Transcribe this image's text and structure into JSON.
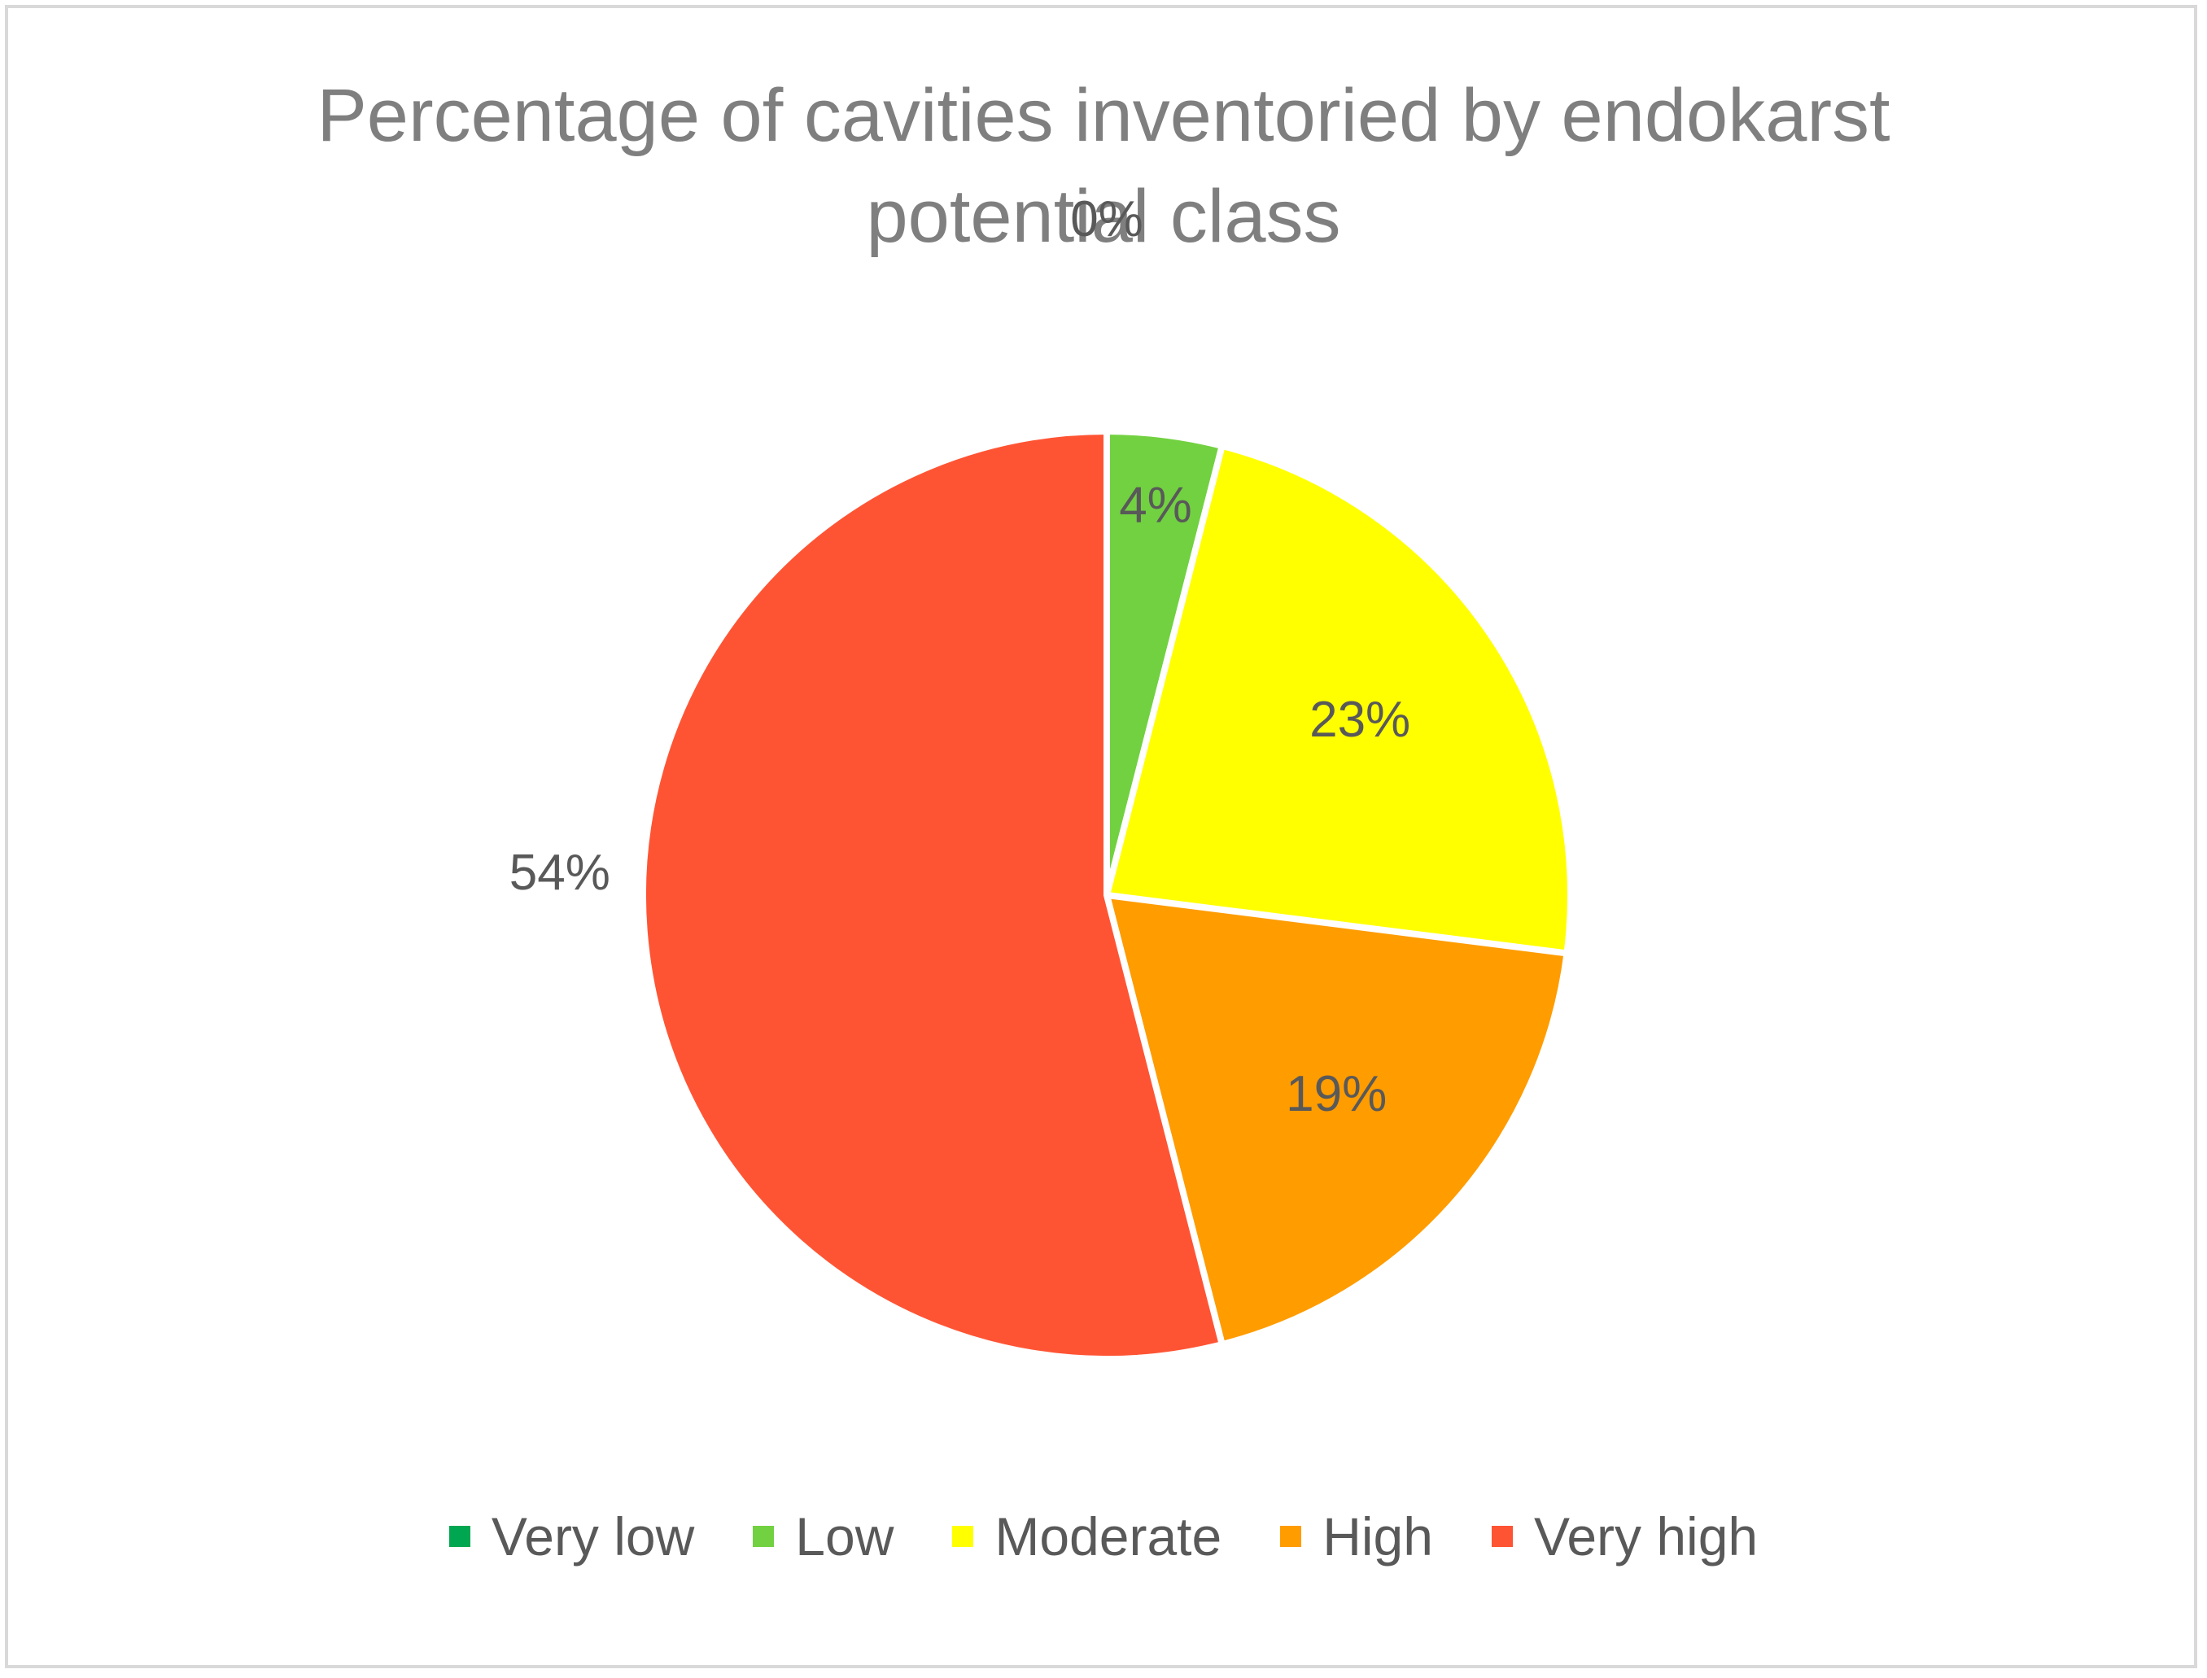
{
  "chart_data": {
    "type": "pie",
    "title": "Percentage of cavities inventoried by endokarst potential class",
    "title_lines": [
      "Percentage of cavities inventoried by endokarst",
      "potential class"
    ],
    "legend_position": "bottom",
    "slices": [
      {
        "name": "Very low",
        "value": 0,
        "label": "0%",
        "color": "#00a650"
      },
      {
        "name": "Low",
        "value": 4,
        "label": "4%",
        "color": "#72d141"
      },
      {
        "name": "Moderate",
        "value": 23,
        "label": "23%",
        "color": "#ffff00"
      },
      {
        "name": "High",
        "value": 19,
        "label": "19%",
        "color": "#ff9c00"
      },
      {
        "name": "Very high",
        "value": 54,
        "label": "54%",
        "color": "#ff5434"
      }
    ],
    "label_color": "#595959",
    "border_color": "#ffffff"
  }
}
